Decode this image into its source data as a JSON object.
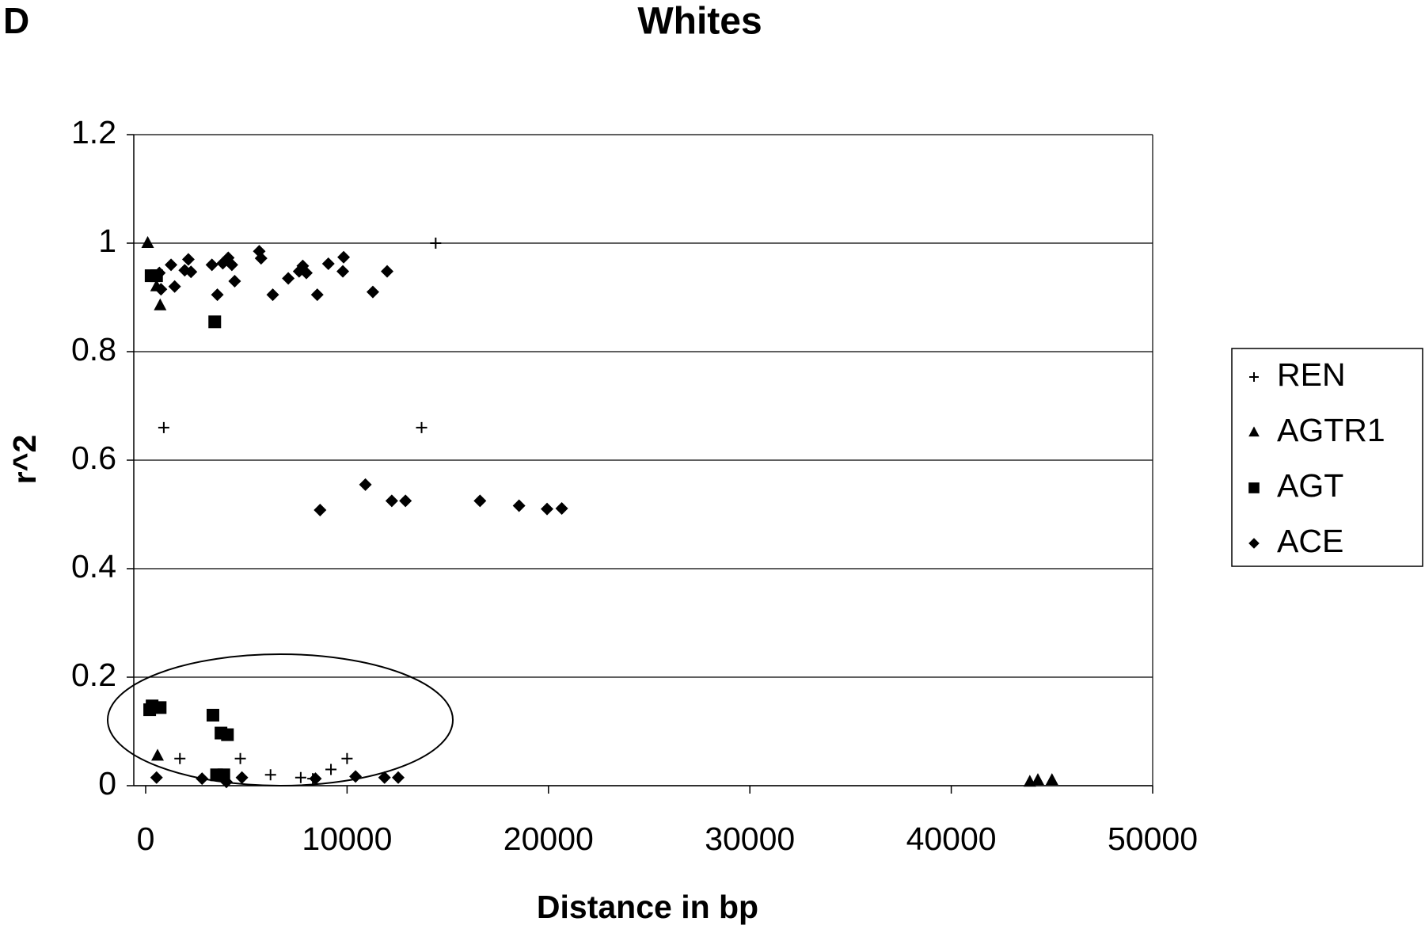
{
  "panel_label": "D",
  "chart_data": {
    "type": "scatter",
    "title": "Whites",
    "x_label": "Distance in bp",
    "y_label": "r^2",
    "xlim": [
      0,
      50000
    ],
    "ylim": [
      0,
      1.2
    ],
    "xticks": [
      0,
      10000,
      20000,
      30000,
      40000,
      50000
    ],
    "yticks": [
      0,
      0.2,
      0.4,
      0.6,
      0.8,
      1,
      1.2
    ],
    "grid": true,
    "legend": "right",
    "series": [
      {
        "name": "REN",
        "marker": "plus",
        "color": "#000000",
        "x": [
          900,
          13700,
          14400,
          1700,
          4700,
          6200,
          7700,
          8300,
          9200,
          10000
        ],
        "values": [
          0.66,
          0.66,
          1.0,
          0.05,
          0.05,
          0.02,
          0.015,
          0.013,
          0.03,
          0.05
        ]
      },
      {
        "name": "AGTR1",
        "marker": "triangle",
        "color": "#000000",
        "x": [
          100,
          540,
          720,
          590,
          43900,
          44300,
          45000
        ],
        "values": [
          1.0,
          0.92,
          0.885,
          0.055,
          0.007,
          0.01,
          0.01
        ]
      },
      {
        "name": "AGT",
        "marker": "square",
        "color": "#000000",
        "x": [
          270,
          540,
          3430,
          320,
          200,
          720,
          3340,
          3740,
          4060,
          3520,
          3880
        ],
        "values": [
          0.94,
          0.94,
          0.855,
          0.147,
          0.14,
          0.144,
          0.13,
          0.097,
          0.094,
          0.02,
          0.02
        ]
      },
      {
        "name": "ACE",
        "marker": "diamond",
        "color": "#000000",
        "x": [
          680,
          760,
          1260,
          1440,
          1940,
          2120,
          2250,
          3290,
          3560,
          3830,
          4100,
          4280,
          4420,
          5640,
          5730,
          6310,
          7080,
          7620,
          7800,
          7980,
          8520,
          9070,
          9790,
          9830,
          11280,
          11990,
          8660,
          10910,
          12220,
          12900,
          16600,
          18540,
          19930,
          20660,
          540,
          2800,
          4010,
          4780,
          8430,
          10420,
          11860,
          12540
        ],
        "values": [
          0.945,
          0.915,
          0.96,
          0.92,
          0.95,
          0.97,
          0.947,
          0.96,
          0.905,
          0.963,
          0.973,
          0.96,
          0.93,
          0.985,
          0.972,
          0.905,
          0.935,
          0.948,
          0.958,
          0.945,
          0.905,
          0.962,
          0.948,
          0.974,
          0.91,
          0.948,
          0.508,
          0.555,
          0.525,
          0.525,
          0.525,
          0.516,
          0.51,
          0.511,
          0.015,
          0.013,
          0.007,
          0.015,
          0.013,
          0.017,
          0.015,
          0.015
        ]
      }
    ]
  }
}
